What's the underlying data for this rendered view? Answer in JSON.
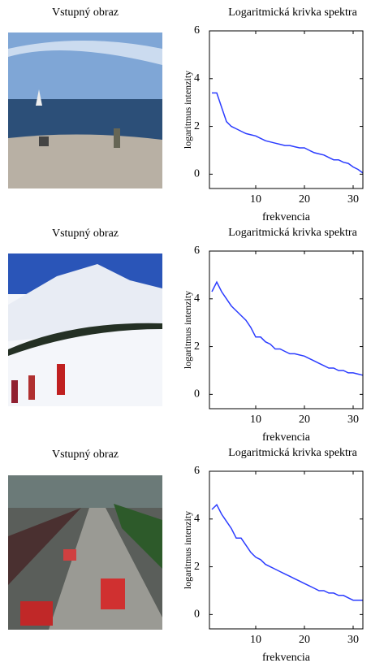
{
  "images": [
    {
      "title": "Vstupný obraz"
    },
    {
      "title": "Vstupný obraz"
    },
    {
      "title": "Vstupný obraz"
    }
  ],
  "chart_data": [
    {
      "type": "line",
      "title": "Logaritmická krivka spektra",
      "xlabel": "frekvencia",
      "ylabel": "logaritmus  intenzity",
      "color": "#2b3cff",
      "x": [
        1,
        2,
        3,
        4,
        5,
        6,
        7,
        8,
        9,
        10,
        11,
        12,
        13,
        14,
        15,
        16,
        17,
        18,
        19,
        20,
        21,
        22,
        23,
        24,
        25,
        26,
        27,
        28,
        29,
        30,
        31,
        32
      ],
      "values": [
        3.4,
        3.4,
        2.8,
        2.2,
        2.0,
        1.9,
        1.8,
        1.7,
        1.65,
        1.6,
        1.5,
        1.4,
        1.35,
        1.3,
        1.25,
        1.2,
        1.2,
        1.15,
        1.1,
        1.1,
        1.0,
        0.9,
        0.85,
        0.8,
        0.7,
        0.6,
        0.6,
        0.5,
        0.45,
        0.3,
        0.2,
        0.05
      ],
      "xlim": [
        0.5,
        32
      ],
      "ylim": [
        -0.6,
        6
      ],
      "xticks": [
        10,
        20,
        30
      ],
      "yticks": [
        0,
        2,
        4,
        6
      ]
    },
    {
      "type": "line",
      "title": "Logaritmická krivka spektra",
      "xlabel": "frekvencia",
      "ylabel": "logaritmus  intenzity",
      "color": "#2b3cff",
      "x": [
        1,
        2,
        3,
        4,
        5,
        6,
        7,
        8,
        9,
        10,
        11,
        12,
        13,
        14,
        15,
        16,
        17,
        18,
        19,
        20,
        21,
        22,
        23,
        24,
        25,
        26,
        27,
        28,
        29,
        30,
        31,
        32
      ],
      "values": [
        4.3,
        4.7,
        4.3,
        4.0,
        3.7,
        3.5,
        3.3,
        3.1,
        2.8,
        2.4,
        2.4,
        2.2,
        2.1,
        1.9,
        1.9,
        1.8,
        1.7,
        1.7,
        1.65,
        1.6,
        1.5,
        1.4,
        1.3,
        1.2,
        1.1,
        1.1,
        1.0,
        1.0,
        0.9,
        0.9,
        0.85,
        0.8
      ],
      "xlim": [
        0.5,
        32
      ],
      "ylim": [
        -0.6,
        6
      ],
      "xticks": [
        10,
        20,
        30
      ],
      "yticks": [
        0,
        2,
        4,
        6
      ]
    },
    {
      "type": "line",
      "title": "Logaritmická krivka spektra",
      "xlabel": "frekvencia",
      "ylabel": "logaritmus  intenzity",
      "color": "#2b3cff",
      "x": [
        1,
        2,
        3,
        4,
        5,
        6,
        7,
        8,
        9,
        10,
        11,
        12,
        13,
        14,
        15,
        16,
        17,
        18,
        19,
        20,
        21,
        22,
        23,
        24,
        25,
        26,
        27,
        28,
        29,
        30,
        31,
        32
      ],
      "values": [
        4.4,
        4.6,
        4.2,
        3.9,
        3.6,
        3.2,
        3.2,
        2.9,
        2.6,
        2.4,
        2.3,
        2.1,
        2.0,
        1.9,
        1.8,
        1.7,
        1.6,
        1.5,
        1.4,
        1.3,
        1.2,
        1.1,
        1.0,
        1.0,
        0.9,
        0.9,
        0.8,
        0.8,
        0.7,
        0.6,
        0.6,
        0.6
      ],
      "xlim": [
        0.5,
        32
      ],
      "ylim": [
        -0.6,
        6
      ],
      "xticks": [
        10,
        20,
        30
      ],
      "yticks": [
        0,
        2,
        4,
        6
      ]
    }
  ]
}
